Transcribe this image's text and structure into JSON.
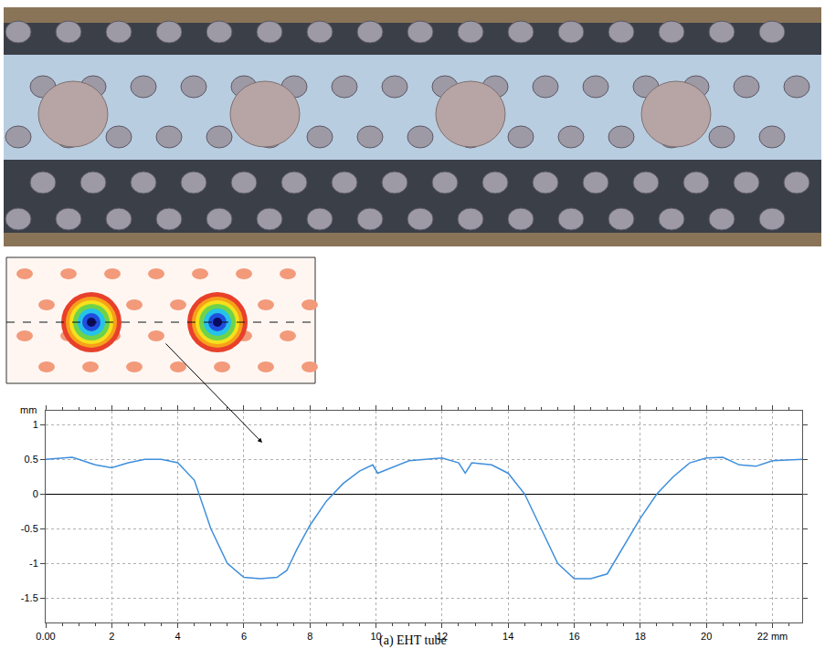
{
  "chart_data": {
    "type": "line",
    "caption": "(a) EHT tube",
    "y_label": "mm",
    "color": "#3f8fdc",
    "grid": true,
    "x": [
      0,
      0.5,
      0.8,
      1,
      1.5,
      2,
      2.5,
      3,
      3.5,
      4,
      4.5,
      5,
      5.5,
      6,
      6.5,
      7,
      7.3,
      7.6,
      8,
      8.5,
      9,
      9.5,
      9.9,
      10.05,
      10.3,
      11,
      12,
      12.5,
      12.7,
      12.9,
      13.5,
      14,
      14.5,
      15,
      15.5,
      16,
      16.5,
      17,
      17.5,
      18,
      18.5,
      19,
      19.5,
      20,
      20.5,
      21,
      21.5,
      22,
      22.9
    ],
    "values": [
      0.5,
      0.52,
      0.53,
      0.5,
      0.42,
      0.38,
      0.45,
      0.5,
      0.5,
      0.45,
      0.2,
      -0.5,
      -1.0,
      -1.2,
      -1.22,
      -1.2,
      -1.1,
      -0.8,
      -0.45,
      -0.1,
      0.15,
      0.33,
      0.42,
      0.3,
      0.35,
      0.48,
      0.52,
      0.45,
      0.3,
      0.45,
      0.42,
      0.3,
      0.0,
      -0.5,
      -1.0,
      -1.22,
      -1.22,
      -1.15,
      -0.75,
      -0.35,
      0.0,
      0.25,
      0.45,
      0.52,
      0.53,
      0.42,
      0.4,
      0.48,
      0.5
    ],
    "xlim": [
      0,
      22.9
    ],
    "xticks": [
      {
        "value": 0,
        "label": "0.00"
      },
      2,
      4,
      6,
      8,
      10,
      12,
      14,
      16,
      18,
      20,
      {
        "value": 22,
        "label": "22 mm"
      }
    ],
    "ylim": [
      -1.85,
      1.2
    ],
    "yticks": [
      -1.5,
      -1,
      -0.5,
      0,
      0.5,
      1
    ]
  }
}
